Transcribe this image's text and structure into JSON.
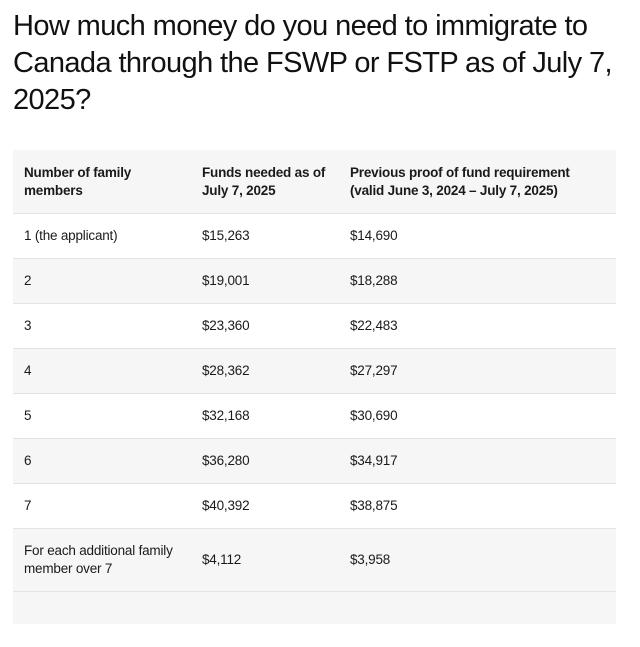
{
  "title": "How much money do you need to immigrate to Canada through the FSWP or FSTP as of July 7, 2025?",
  "table": {
    "headers": [
      "Number of family members",
      "Funds needed as of July 7, 2025",
      "Previous proof of fund requirement (valid June 3, 2024 – July 7, 2025)"
    ],
    "rows": [
      [
        "1 (the applicant)",
        "$15,263",
        "$14,690"
      ],
      [
        "2",
        "$19,001",
        "$18,288"
      ],
      [
        "3",
        "$23,360",
        "$22,483"
      ],
      [
        "4",
        "$28,362",
        "$27,297"
      ],
      [
        "5",
        "$32,168",
        "$30,690"
      ],
      [
        "6",
        "$36,280",
        "$34,917"
      ],
      [
        "7",
        "$40,392",
        "$38,875"
      ],
      [
        "For each additional family member over 7",
        "$4,112",
        "$3,958"
      ]
    ]
  },
  "colors": {
    "text": "#111111",
    "row_alt": "#f6f6f7",
    "row_white": "#ffffff",
    "divider": "#e3e3e6"
  }
}
